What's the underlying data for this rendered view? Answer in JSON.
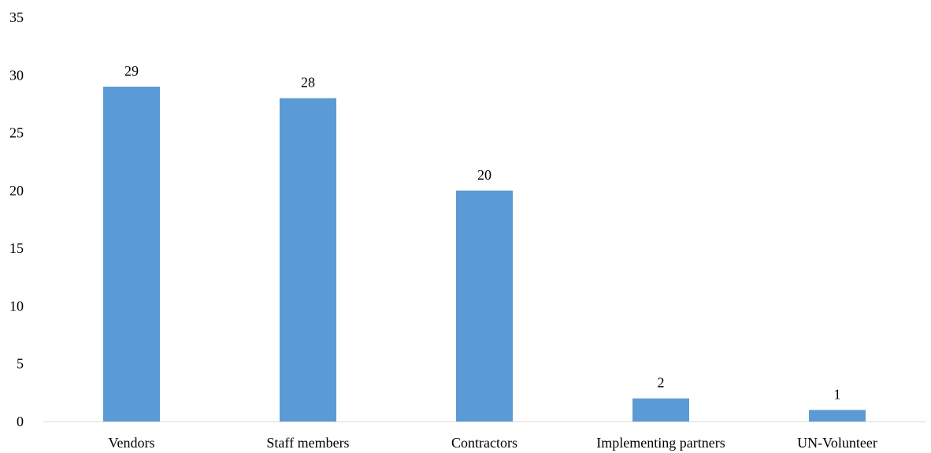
{
  "chart_data": {
    "type": "bar",
    "title": "",
    "xlabel": "",
    "ylabel": "",
    "categories": [
      "Vendors",
      "Staff members",
      "Contractors",
      "Implementing partners",
      "UN-Volunteer"
    ],
    "values": [
      29,
      28,
      20,
      2,
      1
    ],
    "data_labels": [
      "29",
      "28",
      "20",
      "2",
      "1"
    ],
    "ylim": [
      0,
      35
    ],
    "yticks": [
      0,
      5,
      10,
      15,
      20,
      25,
      30,
      35
    ],
    "ytick_labels": [
      "0",
      "5",
      "10",
      "15",
      "20",
      "25",
      "30",
      "35"
    ],
    "grid": false,
    "legend": "none",
    "bar_color": "#5b9bd5",
    "axis_color": "#d9d9d9"
  }
}
